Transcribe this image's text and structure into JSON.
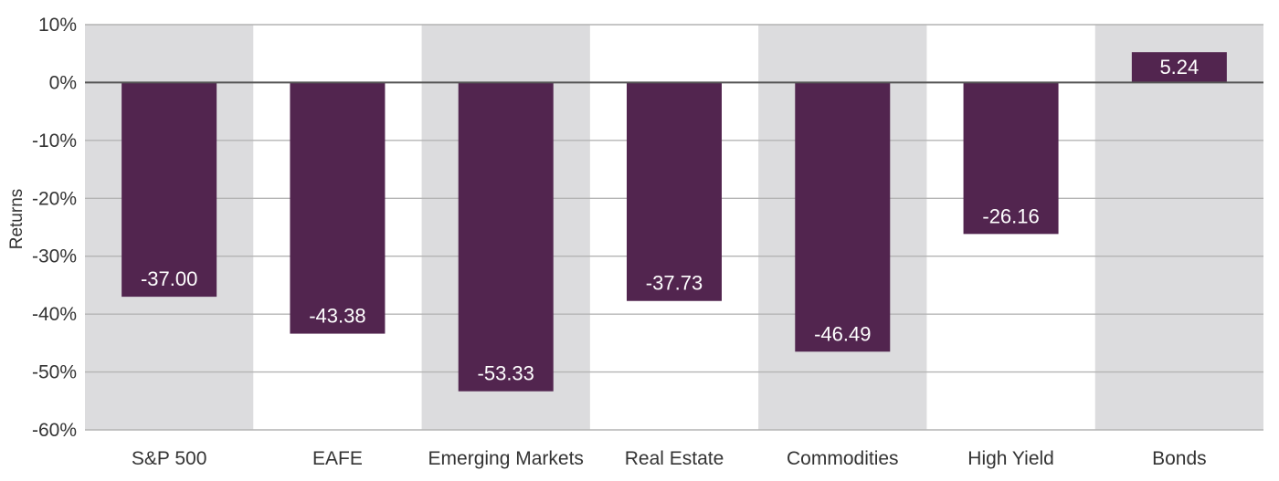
{
  "chart_data": {
    "type": "bar",
    "categories": [
      "S&P 500",
      "EAFE",
      "Emerging Markets",
      "Real Estate",
      "Commodities",
      "High Yield",
      "Bonds"
    ],
    "values": [
      -37.0,
      -43.38,
      -53.33,
      -37.73,
      -46.49,
      -26.16,
      5.24
    ],
    "value_labels": [
      "-37.00",
      "-43.38",
      "-53.33",
      "-37.73",
      "-46.49",
      "-26.16",
      "5.24"
    ],
    "ylabel": "Returns",
    "ylim": [
      -60,
      10
    ],
    "yticks": [
      10,
      0,
      -10,
      -20,
      -30,
      -40,
      -50,
      -60
    ],
    "ytick_labels": [
      "10%",
      "0%",
      "-10%",
      "-20%",
      "-30%",
      "-40%",
      "-50%",
      "-60%"
    ],
    "grid": true,
    "alternating_band_color": "#dcdcde",
    "bar_color": "#52254f",
    "grid_color": "#b4b4b4",
    "zero_line_color": "#555555"
  }
}
